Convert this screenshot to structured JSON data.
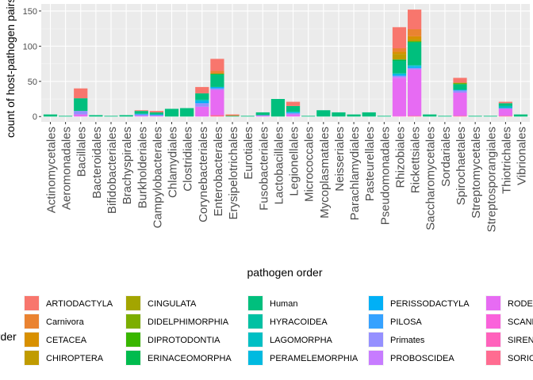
{
  "chart_data": {
    "type": "bar",
    "stacked": true,
    "xlabel": "pathogen order",
    "ylabel": "count of host-pathogen pairs",
    "ylim": [
      0,
      160
    ],
    "yticks": [
      0,
      50,
      100,
      150
    ],
    "grid": true,
    "legend_title": "order",
    "legend_position": "bottom",
    "categories": [
      "Actinomycetales",
      "Aeromonadales",
      "Bacillales",
      "Bacteroidales",
      "Bifidobacteriales",
      "Brachyspirales",
      "Burkholderiales",
      "Campylobacterales",
      "Chlamydiales",
      "Clostridiales",
      "Corynebacteriales",
      "Enterobacterales",
      "Erysipelotrichales",
      "Eurotiales",
      "Fusobacteriales",
      "Lactobacillales",
      "Legionellales",
      "Micrococcales",
      "Mycoplasmatales",
      "Neisseriales",
      "Parachlamydiales",
      "Pasteurellales",
      "Pseudomonadales",
      "Rhizobiales",
      "Rickettsiales",
      "Saccharomycetales",
      "Sordariales",
      "Spirochaetales",
      "Streptomycetales",
      "Streptosporangiales",
      "Thiotrichales",
      "Vibrionales"
    ],
    "series": [
      {
        "name": "ARTIODACTYLA",
        "color": "#F8766D",
        "values": [
          0,
          0,
          14,
          0,
          0,
          0,
          1,
          2,
          0,
          0,
          9,
          17,
          1,
          0,
          0,
          0,
          6,
          0,
          0,
          0,
          0,
          0,
          0,
          30,
          28,
          0,
          0,
          7,
          0,
          0,
          2,
          0
        ]
      },
      {
        "name": "Carnivora",
        "color": "#EA8331",
        "values": [
          0,
          0,
          0,
          0,
          0,
          0,
          0,
          0,
          0,
          0,
          0,
          4,
          1,
          0,
          0,
          0,
          0,
          0,
          0,
          0,
          0,
          0,
          0,
          5,
          10,
          0,
          0,
          0,
          0,
          0,
          0,
          0
        ]
      },
      {
        "name": "CETACEA",
        "color": "#D89000",
        "values": [
          0,
          0,
          0,
          0,
          0,
          0,
          0,
          0,
          0,
          0,
          0,
          0,
          0,
          0,
          0,
          0,
          0,
          0,
          0,
          0,
          0,
          0,
          0,
          3,
          4,
          0,
          0,
          0,
          0,
          0,
          0,
          0
        ]
      },
      {
        "name": "CHIROPTERA",
        "color": "#C09B00",
        "values": [
          0,
          0,
          0,
          0,
          0,
          0,
          0,
          0,
          0,
          0,
          0,
          0,
          0,
          0,
          0,
          0,
          0,
          0,
          0,
          0,
          0,
          0,
          0,
          8,
          3,
          0,
          0,
          0,
          0,
          0,
          0,
          0
        ]
      },
      {
        "name": "CINGULATA",
        "color": "#A3A500",
        "values": [
          0,
          0,
          0,
          0,
          0,
          0,
          0,
          0,
          0,
          0,
          0,
          0,
          0,
          0,
          0,
          0,
          0,
          0,
          0,
          0,
          0,
          0,
          0,
          0,
          0,
          0,
          0,
          1,
          0,
          0,
          0,
          0
        ]
      },
      {
        "name": "DIDELPHIMORPHIA",
        "color": "#7CAE00",
        "values": [
          0,
          0,
          0,
          0,
          0,
          0,
          0,
          0,
          0,
          0,
          0,
          0,
          0,
          0,
          0,
          0,
          0,
          0,
          0,
          0,
          0,
          0,
          0,
          0,
          0,
          0,
          0,
          0,
          0,
          0,
          0,
          0
        ]
      },
      {
        "name": "DIPROTODONTIA",
        "color": "#39B600",
        "values": [
          0,
          0,
          0,
          0,
          0,
          0,
          0,
          0,
          0,
          0,
          0,
          1,
          0,
          0,
          0,
          0,
          0,
          0,
          0,
          0,
          0,
          0,
          0,
          0,
          1,
          0,
          0,
          1,
          0,
          0,
          0,
          0
        ]
      },
      {
        "name": "ERINACEOMORPHA",
        "color": "#00BB4E",
        "values": [
          0,
          0,
          0,
          0,
          0,
          0,
          0,
          0,
          0,
          0,
          0,
          0,
          0,
          0,
          0,
          0,
          0,
          0,
          0,
          0,
          0,
          0,
          0,
          2,
          1,
          0,
          0,
          0,
          0,
          0,
          0,
          0
        ]
      },
      {
        "name": "Human",
        "color": "#00BF7D",
        "values": [
          3,
          1,
          18,
          2,
          1,
          2,
          4,
          3,
          11,
          12,
          9,
          18,
          1,
          1,
          4,
          25,
          8,
          1,
          9,
          6,
          3,
          6,
          1,
          17,
          32,
          3,
          1,
          8,
          1,
          1,
          4,
          3
        ]
      },
      {
        "name": "HYRACOIDEA",
        "color": "#00C1A3",
        "values": [
          0,
          0,
          0,
          0,
          0,
          0,
          0,
          0,
          0,
          0,
          0,
          0,
          0,
          0,
          0,
          0,
          0,
          0,
          0,
          0,
          0,
          0,
          0,
          1,
          0,
          0,
          0,
          0,
          0,
          0,
          0,
          0
        ]
      },
      {
        "name": "LAGOMORPHA",
        "color": "#00BFC4",
        "values": [
          0,
          0,
          0,
          0,
          0,
          0,
          0,
          0,
          0,
          0,
          2,
          0,
          0,
          0,
          0,
          0,
          1,
          0,
          0,
          0,
          0,
          0,
          0,
          1,
          1,
          0,
          0,
          0,
          0,
          0,
          3,
          0
        ]
      },
      {
        "name": "PERAMELEMORPHIA",
        "color": "#00BAE0",
        "values": [
          0,
          0,
          0,
          0,
          0,
          0,
          0,
          0,
          0,
          0,
          0,
          0,
          0,
          0,
          0,
          0,
          0,
          0,
          0,
          0,
          0,
          0,
          0,
          0,
          1,
          0,
          0,
          0,
          0,
          0,
          0,
          0
        ]
      },
      {
        "name": "PERISSODACTYLA",
        "color": "#00B0F6",
        "values": [
          0,
          0,
          0,
          0,
          0,
          0,
          1,
          1,
          0,
          0,
          3,
          2,
          0,
          0,
          0,
          0,
          1,
          0,
          0,
          0,
          0,
          0,
          0,
          2,
          2,
          0,
          0,
          1,
          0,
          0,
          0,
          0
        ]
      },
      {
        "name": "PILOSA",
        "color": "#35A2FF",
        "values": [
          0,
          0,
          0,
          0,
          0,
          0,
          0,
          0,
          0,
          0,
          0,
          0,
          0,
          0,
          0,
          0,
          0,
          0,
          0,
          0,
          0,
          0,
          0,
          0,
          0,
          0,
          0,
          0,
          0,
          0,
          0,
          0
        ]
      },
      {
        "name": "Primates",
        "color": "#9590FF",
        "values": [
          0,
          0,
          5,
          0,
          0,
          0,
          2,
          1,
          0,
          0,
          5,
          2,
          0,
          0,
          1,
          0,
          2,
          0,
          0,
          0,
          0,
          0,
          0,
          2,
          2,
          0,
          0,
          3,
          0,
          0,
          1,
          0
        ]
      },
      {
        "name": "PROBOSCIDEA",
        "color": "#C77CFF",
        "values": [
          0,
          0,
          0,
          0,
          0,
          0,
          0,
          0,
          0,
          0,
          0,
          0,
          0,
          0,
          0,
          0,
          0,
          0,
          0,
          0,
          0,
          0,
          0,
          1,
          0,
          0,
          0,
          0,
          0,
          0,
          0,
          0
        ]
      },
      {
        "name": "RODENTIA",
        "color": "#E76BF3",
        "values": [
          0,
          0,
          3,
          0,
          0,
          0,
          1,
          1,
          0,
          0,
          14,
          36,
          0,
          0,
          1,
          0,
          3,
          0,
          0,
          0,
          0,
          0,
          0,
          54,
          66,
          0,
          0,
          33,
          0,
          0,
          10,
          0
        ]
      },
      {
        "name": "SCANDENTIA",
        "color": "#FA62DB",
        "values": [
          0,
          0,
          0,
          0,
          0,
          0,
          0,
          0,
          0,
          0,
          0,
          0,
          0,
          0,
          0,
          0,
          0,
          0,
          0,
          0,
          0,
          0,
          0,
          1,
          0,
          0,
          0,
          0,
          0,
          0,
          0,
          0
        ]
      },
      {
        "name": "SIRENIA",
        "color": "#FF62BC",
        "values": [
          0,
          0,
          0,
          0,
          0,
          0,
          0,
          0,
          0,
          0,
          0,
          0,
          0,
          0,
          0,
          0,
          0,
          0,
          0,
          0,
          0,
          0,
          0,
          0,
          0,
          0,
          0,
          0,
          0,
          0,
          0,
          0
        ]
      },
      {
        "name": "SORICOMORPHA",
        "color": "#FF6C91",
        "values": [
          0,
          0,
          0,
          0,
          0,
          0,
          0,
          0,
          0,
          0,
          0,
          2,
          0,
          0,
          0,
          0,
          0,
          0,
          0,
          0,
          0,
          0,
          0,
          0,
          1,
          0,
          0,
          1,
          0,
          0,
          1,
          0
        ]
      }
    ]
  }
}
